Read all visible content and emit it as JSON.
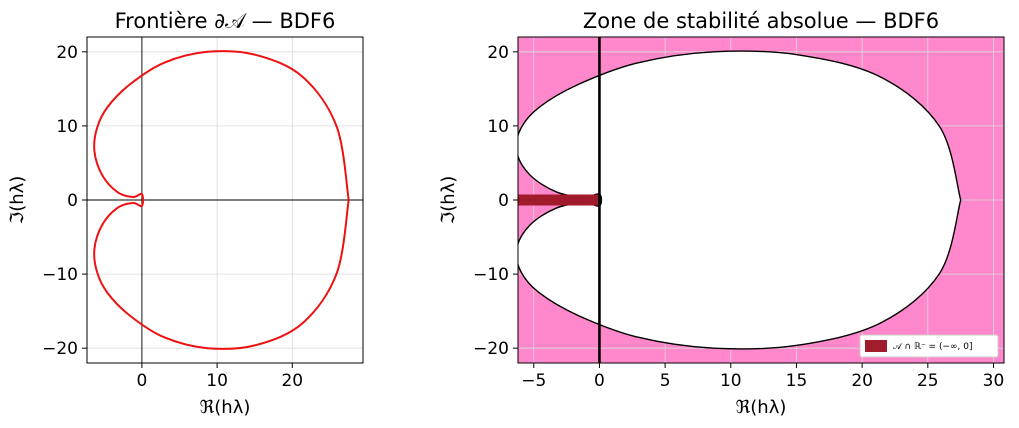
{
  "chart_data": [
    {
      "type": "line",
      "title": "Frontière ∂𝒜 — BDF6",
      "xlabel": "ℜ(hλ)",
      "ylabel": "ℑ(hλ)",
      "xlim": [
        -7.3,
        29.4
      ],
      "ylim": [
        -22,
        22
      ],
      "xticks": [
        0,
        10,
        20
      ],
      "yticks": [
        -20,
        -10,
        0,
        10,
        20
      ],
      "grid": true,
      "boundary_color": "#ee1111",
      "series": [
        {
          "description_points_from_plot": "closed boundary curve of BDF6 root locus",
          "x": [
            27.5,
            25.9,
            21.4,
            15.1,
            8.7,
            2.9,
            -1.6,
            -4.6,
            -6.0,
            -6.3,
            -5.3,
            -3.3,
            -1.2,
            0.0,
            0.0,
            -1.2,
            -3.3,
            -5.3,
            -6.3,
            -6.0,
            -4.6,
            -1.6,
            2.9,
            8.7,
            15.1,
            21.4,
            25.9,
            27.5
          ],
          "y": [
            0.0,
            9.9,
            16.6,
            19.6,
            20.0,
            18.5,
            15.6,
            12.5,
            9.6,
            6.5,
            3.4,
            1.1,
            0.4,
            0.8,
            -0.8,
            -0.4,
            -1.1,
            -3.4,
            -6.5,
            -9.6,
            -12.5,
            -15.6,
            -18.5,
            -20.0,
            -19.6,
            -16.6,
            -9.9,
            0.0
          ]
        }
      ]
    },
    {
      "type": "area",
      "title": "Zone de stabilité absolue — BDF6",
      "xlabel": "ℜ(hλ)",
      "ylabel": "ℑ(hλ)",
      "xlim": [
        -6.2,
        30.8
      ],
      "ylim": [
        -22,
        22
      ],
      "xticks": [
        -5,
        0,
        5,
        10,
        15,
        20,
        25,
        30
      ],
      "yticks": [
        -20,
        -10,
        0,
        10,
        20
      ],
      "grid": true,
      "stable_color": "#ff88cc",
      "real_axis_segment_color": "#a01c2c",
      "real_axis_segment_x": [
        -6.2,
        0.0
      ],
      "legend": {
        "label": "𝒜 ∩ ℝ⁻ = (−∞, 0]",
        "loc": "lower right"
      }
    }
  ]
}
